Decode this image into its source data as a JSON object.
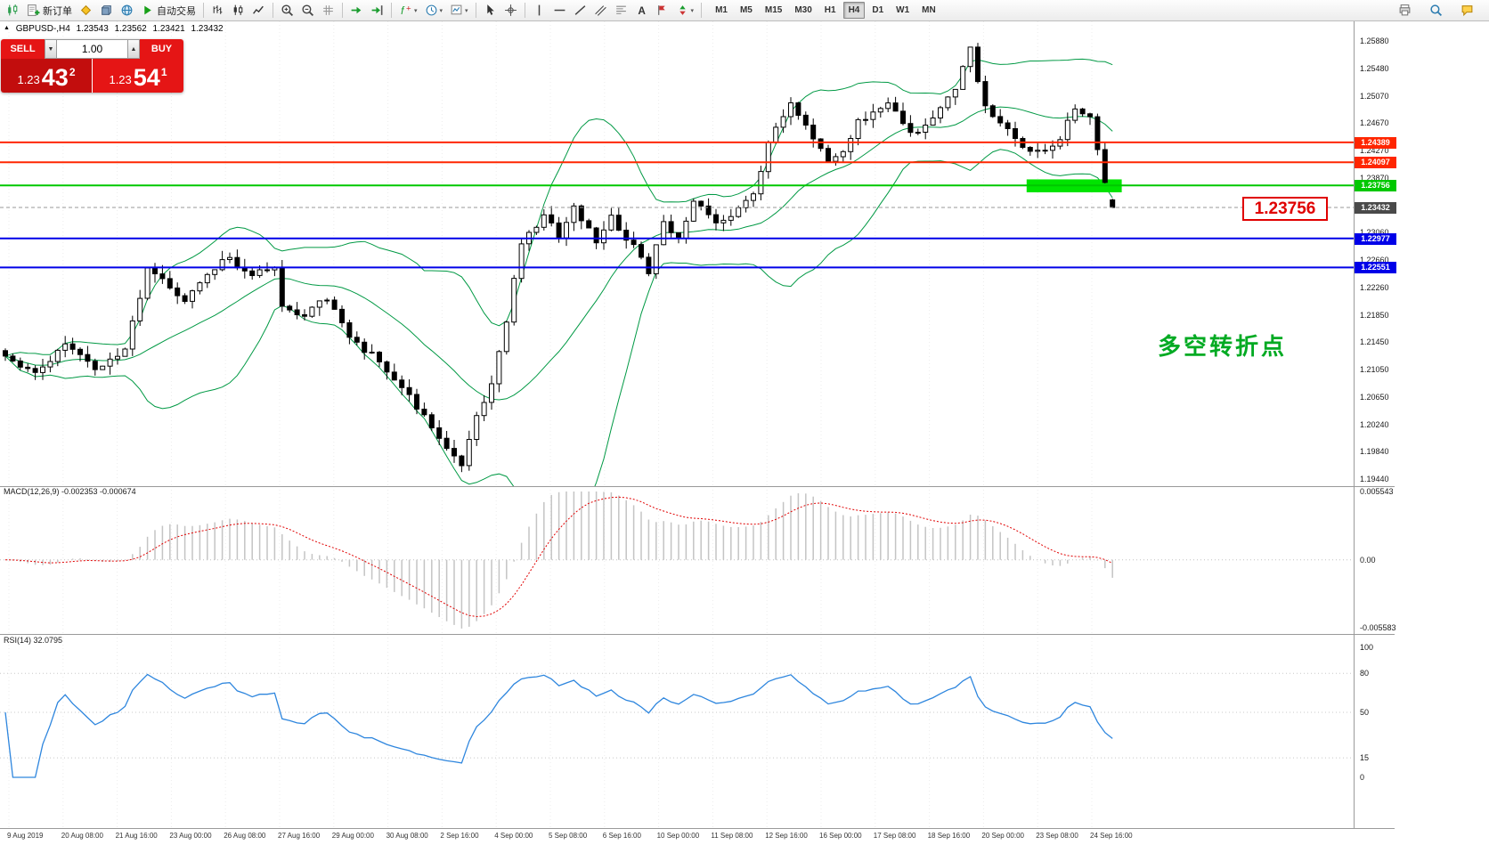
{
  "glyphs": {
    "up_arrow": "▲",
    "down_arrow": "▼",
    "dropdown": "▾",
    "collapse_triangle": "▲"
  },
  "toolbar": {
    "buttons": [
      {
        "name": "new-chart",
        "icon": "candles-green"
      },
      {
        "name": "new-order",
        "icon": "new-order",
        "label": "新订单"
      },
      {
        "name": "metaeditor",
        "icon": "diamond-yellow"
      },
      {
        "name": "market-watch",
        "icon": "cube-blue"
      },
      {
        "name": "navigator",
        "icon": "globe"
      },
      {
        "name": "autotrading",
        "icon": "play-green",
        "label": "自动交易"
      },
      {
        "sep": true
      },
      {
        "name": "bar-chart",
        "icon": "bars"
      },
      {
        "name": "candlestick-chart",
        "icon": "candles"
      },
      {
        "name": "line-chart",
        "icon": "linechart"
      },
      {
        "sep": true
      },
      {
        "name": "zoom-in",
        "icon": "zoom-in"
      },
      {
        "name": "zoom-out",
        "icon": "zoom-out"
      },
      {
        "name": "tile-windows",
        "icon": "grid"
      },
      {
        "sep": true
      },
      {
        "name": "auto-scroll",
        "icon": "scroll-arrow"
      },
      {
        "name": "chart-shift",
        "icon": "shift-arrow"
      },
      {
        "sep": true
      },
      {
        "name": "indicators",
        "icon": "indicator-f",
        "dropdown": true
      },
      {
        "name": "periods",
        "icon": "clock",
        "dropdown": true
      },
      {
        "name": "templates",
        "icon": "template",
        "dropdown": true
      },
      {
        "sep": true
      },
      {
        "name": "cursor",
        "icon": "cursor"
      },
      {
        "name": "crosshair",
        "icon": "crosshair"
      },
      {
        "sep": true
      },
      {
        "name": "vertical-line",
        "icon": "vline"
      },
      {
        "name": "horizontal-line",
        "icon": "hline"
      },
      {
        "name": "trendline",
        "icon": "tline"
      },
      {
        "name": "equidistant-channel",
        "icon": "channel"
      },
      {
        "name": "fibonacci",
        "icon": "fibo"
      },
      {
        "name": "text",
        "icon": "text-a"
      },
      {
        "name": "text-label",
        "icon": "label-flag"
      },
      {
        "name": "arrows",
        "icon": "shapes",
        "dropdown": true
      },
      {
        "sep": true
      }
    ],
    "timeframes": [
      {
        "label": "M1"
      },
      {
        "label": "M5"
      },
      {
        "label": "M15"
      },
      {
        "label": "M30"
      },
      {
        "label": "H1"
      },
      {
        "label": "H4",
        "active": true
      },
      {
        "label": "D1"
      },
      {
        "label": "W1"
      },
      {
        "label": "MN"
      }
    ],
    "right_buttons": [
      {
        "name": "print",
        "icon": "print"
      },
      {
        "name": "search",
        "icon": "search"
      },
      {
        "name": "community-chat",
        "icon": "chat"
      }
    ]
  },
  "chart": {
    "symbol_header": "GBPUSD-,H4",
    "ohlc": {
      "open": "1.23543",
      "high": "1.23562",
      "low": "1.23421",
      "close": "1.23432"
    },
    "trade_panel": {
      "sell_label": "SELL",
      "buy_label": "BUY",
      "volume": "1.00",
      "sell_price_small": "1.23",
      "sell_price_big": "43",
      "sell_price_sup": "2",
      "buy_price_small": "1.23",
      "buy_price_big": "54",
      "buy_price_sup": "1"
    },
    "price_axis_labels": [
      "1.25880",
      "1.25480",
      "1.25070",
      "1.24670",
      "1.24270",
      "1.23870",
      "1.23460",
      "1.23060",
      "1.22660",
      "1.22260",
      "1.21850",
      "1.21450",
      "1.21050",
      "1.20650",
      "1.20240",
      "1.19840",
      "1.19440"
    ],
    "levels": [
      {
        "price": 1.24389,
        "label": "1.24389",
        "color": "#ff2600",
        "width": 2
      },
      {
        "price": 1.24097,
        "label": "1.24097",
        "color": "#ff2600",
        "width": 2
      },
      {
        "price": 1.23756,
        "label": "1.23756",
        "color": "#00c800",
        "width": 2
      },
      {
        "price": 1.22977,
        "label": "1.22977",
        "color": "#0000e8",
        "width": 2
      },
      {
        "price": 1.22551,
        "label": "1.22551",
        "color": "#0000e8",
        "width": 2
      }
    ],
    "current_price": {
      "value": 1.23432,
      "label": "1.23432",
      "tag_color": "#4a4a4a"
    },
    "price_callout": "1.23756",
    "annotation": {
      "text": "多空转折点",
      "color": "#00aa22"
    },
    "highlight_zone": {
      "bar_start": 137,
      "bar_end": 149,
      "price_top": 1.23845,
      "price_bottom": 1.23655,
      "color": "#00e400"
    },
    "time_axis_labels": [
      "9 Aug 2019",
      "20 Aug 08:00",
      "21 Aug 16:00",
      "23 Aug 00:00",
      "26 Aug 08:00",
      "27 Aug 16:00",
      "29 Aug 00:00",
      "30 Aug 08:00",
      "2 Sep 16:00",
      "4 Sep 00:00",
      "5 Sep 08:00",
      "6 Sep 16:00",
      "10 Sep 00:00",
      "11 Sep 08:00",
      "12 Sep 16:00",
      "16 Sep 00:00",
      "17 Sep 08:00",
      "18 Sep 16:00",
      "20 Sep 00:00",
      "23 Sep 08:00",
      "24 Sep 16:00"
    ]
  },
  "indicators": {
    "macd": {
      "header": "MACD(12,26,9) -0.002353 -0.000674",
      "scale": [
        "0.005543",
        "0.00",
        "-0.005583"
      ],
      "range": [
        -0.005583,
        0.005543
      ]
    },
    "rsi": {
      "header": "RSI(14) 32.0795",
      "scale": [
        "100",
        "80",
        "50",
        "15",
        "0"
      ],
      "levels": [
        80,
        50,
        15
      ]
    }
  },
  "chart_data": {
    "type": "candlestick",
    "symbol": "GBPUSD",
    "timeframe": "H4",
    "bars": 149,
    "price_range": [
      1.1944,
      1.2588
    ],
    "close_path_anchors": [
      [
        0,
        1.2125
      ],
      [
        4,
        1.21
      ],
      [
        8,
        1.214
      ],
      [
        12,
        1.211
      ],
      [
        16,
        1.213
      ],
      [
        17,
        1.218
      ],
      [
        19,
        1.225
      ],
      [
        22,
        1.223
      ],
      [
        24,
        1.2205
      ],
      [
        27,
        1.225
      ],
      [
        30,
        1.227
      ],
      [
        33,
        1.224
      ],
      [
        36,
        1.226
      ],
      [
        37,
        1.22
      ],
      [
        40,
        1.2185
      ],
      [
        43,
        1.221
      ],
      [
        46,
        1.215
      ],
      [
        50,
        1.212
      ],
      [
        53,
        1.208
      ],
      [
        56,
        1.2035
      ],
      [
        59,
        1.199
      ],
      [
        61,
        1.1965
      ],
      [
        63,
        1.204
      ],
      [
        65,
        1.208
      ],
      [
        67,
        1.218
      ],
      [
        69,
        1.229
      ],
      [
        72,
        1.233
      ],
      [
        74,
        1.23
      ],
      [
        76,
        1.2345
      ],
      [
        79,
        1.229
      ],
      [
        81,
        1.233
      ],
      [
        83,
        1.23
      ],
      [
        86,
        1.225
      ],
      [
        88,
        1.232
      ],
      [
        90,
        1.23
      ],
      [
        92,
        1.235
      ],
      [
        95,
        1.232
      ],
      [
        98,
        1.234
      ],
      [
        100,
        1.236
      ],
      [
        102,
        1.244
      ],
      [
        105,
        1.25
      ],
      [
        107,
        1.246
      ],
      [
        110,
        1.241
      ],
      [
        112,
        1.243
      ],
      [
        114,
        1.247
      ],
      [
        116,
        1.248
      ],
      [
        118,
        1.2495
      ],
      [
        121,
        1.245
      ],
      [
        124,
        1.247
      ],
      [
        127,
        1.252
      ],
      [
        129,
        1.2575
      ],
      [
        131,
        1.249
      ],
      [
        133,
        1.247
      ],
      [
        136,
        1.243
      ],
      [
        139,
        1.2425
      ],
      [
        141,
        1.2445
      ],
      [
        143,
        1.249
      ],
      [
        145,
        1.248
      ],
      [
        147,
        1.2375
      ],
      [
        148,
        1.2343
      ]
    ],
    "last_bar_ohlc": [
      1.23543,
      1.23562,
      1.23421,
      1.23432
    ],
    "overlays": {
      "bollinger_period": 20,
      "bollinger_deviation": 2,
      "band_color": "#009944"
    },
    "horizontal_levels": [
      1.24389,
      1.24097,
      1.23756,
      1.22977,
      1.22551
    ],
    "macd_current": [
      -0.002353,
      -0.000674
    ],
    "rsi_current": 32.0795
  }
}
